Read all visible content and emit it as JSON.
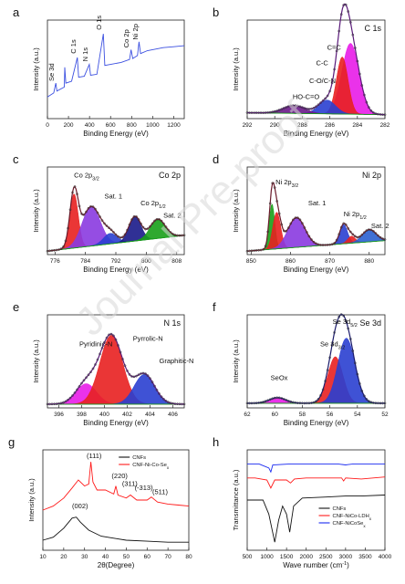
{
  "watermark": "Journal Pre-proof",
  "chart_data": [
    {
      "id": "a",
      "panel_letter": "a",
      "type": "line",
      "title": "",
      "xlabel": "Binding Energy (eV)",
      "ylabel": "Intensity (a.u.)",
      "xlim": [
        0,
        1300
      ],
      "ylim": [
        0,
        1
      ],
      "xticks": [
        0,
        200,
        400,
        600,
        800,
        1000,
        1200
      ],
      "series": [
        {
          "color": "#3b4fe0",
          "points": [
            [
              0,
              0.22
            ],
            [
              60,
              0.26
            ],
            [
              80,
              0.36
            ],
            [
              90,
              0.28
            ],
            [
              160,
              0.32
            ],
            [
              165,
              0.52
            ],
            [
              175,
              0.36
            ],
            [
              230,
              0.38
            ],
            [
              284,
              0.62
            ],
            [
              296,
              0.42
            ],
            [
              350,
              0.43
            ],
            [
              398,
              0.55
            ],
            [
              410,
              0.44
            ],
            [
              470,
              0.45
            ],
            [
              531,
              0.86
            ],
            [
              545,
              0.54
            ],
            [
              600,
              0.55
            ],
            [
              700,
              0.57
            ],
            [
              780,
              0.6
            ],
            [
              795,
              0.7
            ],
            [
              810,
              0.61
            ],
            [
              855,
              0.64
            ],
            [
              870,
              0.78
            ],
            [
              885,
              0.66
            ],
            [
              950,
              0.69
            ],
            [
              1000,
              0.7
            ],
            [
              1100,
              0.72
            ],
            [
              1200,
              0.73
            ],
            [
              1300,
              0.74
            ]
          ]
        }
      ],
      "annotations": [
        {
          "text": "Se 3d",
          "x": 60,
          "y": 0.38
        },
        {
          "text": "C 1s",
          "x": 270,
          "y": 0.66
        },
        {
          "text": "N 1s",
          "x": 380,
          "y": 0.58
        },
        {
          "text": "O 1s",
          "x": 510,
          "y": 0.9
        },
        {
          "text": "Co 2p",
          "x": 770,
          "y": 0.72
        },
        {
          "text": "Ni 2p",
          "x": 860,
          "y": 0.8
        }
      ]
    },
    {
      "id": "b",
      "panel_letter": "b",
      "type": "area",
      "title": "C 1s",
      "xlabel": "Binding Energy (eV)",
      "ylabel": "Intensity (a.u.)",
      "xlim": [
        292,
        282
      ],
      "ylim": [
        0,
        1
      ],
      "xticks": [
        282,
        284,
        286,
        288,
        290,
        292
      ],
      "background": [
        [
          292,
          0.06
        ],
        [
          282,
          0.04
        ]
      ],
      "peaks": [
        {
          "label": "C=C",
          "center": 284.5,
          "height": 0.72,
          "sigma": 0.62,
          "color": "#e81ce8"
        },
        {
          "label": "C-C",
          "center": 285.1,
          "height": 0.58,
          "sigma": 0.42,
          "color": "#e82020"
        },
        {
          "label": "C-O/C-N",
          "center": 286.2,
          "height": 0.14,
          "sigma": 0.62,
          "color": "#2a3fd0"
        },
        {
          "label": "HO-C=O",
          "center": 288.6,
          "height": 0.08,
          "sigma": 0.8,
          "color": "#6a1a8a"
        }
      ],
      "envelope_color": "#5a1a7a",
      "annotations": [
        {
          "text": "C=C",
          "x": 286.2,
          "y": 0.7
        },
        {
          "text": "C-C",
          "x": 287.0,
          "y": 0.54
        },
        {
          "text": "C-O/C-N",
          "x": 287.5,
          "y": 0.36
        },
        {
          "text": "HO-C=O",
          "x": 288.7,
          "y": 0.2
        }
      ]
    },
    {
      "id": "c",
      "panel_letter": "c",
      "type": "area",
      "title": "Co 2p",
      "xlabel": "Binding Energy (eV)",
      "ylabel": "Intensity (a.u.)",
      "xlim": [
        774,
        810
      ],
      "ylim": [
        0,
        1
      ],
      "xticks": [
        776,
        784,
        792,
        800,
        808
      ],
      "background": [
        [
          774,
          0.04
        ],
        [
          810,
          0.22
        ]
      ],
      "peaks": [
        {
          "label": "Co 2p3/2",
          "center": 781.0,
          "height": 0.62,
          "sigma": 1.1,
          "color": "#e82020"
        },
        {
          "label": "Sat. 1",
          "center": 785.5,
          "height": 0.45,
          "sigma": 2.4,
          "color": "#8a3ae0"
        },
        {
          "label": "",
          "center": 790.5,
          "height": 0.12,
          "sigma": 1.8,
          "color": "#2a3fd0"
        },
        {
          "label": "Co 2p1/2",
          "center": 797.0,
          "height": 0.28,
          "sigma": 1.6,
          "color": "#1a1a8a"
        },
        {
          "label": "Sat. 2",
          "center": 803.0,
          "height": 0.22,
          "sigma": 2.0,
          "color": "#18a018"
        }
      ],
      "envelope_color": "#6a1a2a",
      "annotations": [
        {
          "text": "Co 2p",
          "sub": "3/2",
          "x": 781,
          "y": 0.88
        },
        {
          "text": "Sat. 1",
          "x": 789,
          "y": 0.64
        },
        {
          "text": "Co 2p",
          "sub": "1/2",
          "x": 798.5,
          "y": 0.56
        },
        {
          "text": "Sat. 2",
          "x": 804.5,
          "y": 0.42
        }
      ]
    },
    {
      "id": "d",
      "panel_letter": "d",
      "type": "area",
      "title": "Ni 2p",
      "xlabel": "Binding Energy (eV)",
      "ylabel": "Intensity (a.u.)",
      "xlim": [
        849,
        884
      ],
      "ylim": [
        0,
        1
      ],
      "xticks": [
        850,
        860,
        870,
        880
      ],
      "background": [
        [
          849,
          0.04
        ],
        [
          884,
          0.16
        ]
      ],
      "peaks": [
        {
          "label": "",
          "center": 855.3,
          "height": 0.52,
          "sigma": 0.7,
          "color": "#18a018"
        },
        {
          "label": "Ni 2p3/2",
          "center": 856.5,
          "height": 0.42,
          "sigma": 1.0,
          "color": "#e82020"
        },
        {
          "label": "Sat. 1",
          "center": 861.5,
          "height": 0.34,
          "sigma": 2.2,
          "color": "#8a3ae0"
        },
        {
          "label": "Ni 2p1/2",
          "center": 873.5,
          "height": 0.22,
          "sigma": 1.0,
          "color": "#2a3fd0"
        },
        {
          "label": "",
          "center": 875.5,
          "height": 0.08,
          "sigma": 1.0,
          "color": "#e82020"
        },
        {
          "label": "Sat. 2",
          "center": 880.0,
          "height": 0.14,
          "sigma": 1.8,
          "color": "#2a5fd0"
        }
      ],
      "envelope_color": "#6a1a2a",
      "annotations": [
        {
          "text": "Ni 2p",
          "sub": "3/2",
          "x": 856.2,
          "y": 0.8
        },
        {
          "text": "Sat. 1",
          "x": 864.5,
          "y": 0.56
        },
        {
          "text": "Ni 2p",
          "sub": "1/2",
          "x": 873.5,
          "y": 0.44
        },
        {
          "text": "Sat. 2",
          "x": 880.5,
          "y": 0.3
        }
      ]
    },
    {
      "id": "e",
      "panel_letter": "e",
      "type": "area",
      "title": "N 1s",
      "xlabel": "Binding Energy (eV)",
      "ylabel": "Intensity (a.u.)",
      "xlim": [
        395,
        407
      ],
      "ylim": [
        0,
        1
      ],
      "xticks": [
        396,
        398,
        400,
        402,
        404,
        406
      ],
      "background": [
        [
          395,
          0.04
        ],
        [
          407,
          0.04
        ]
      ],
      "peaks": [
        {
          "label": "Pyridinic-N",
          "center": 398.4,
          "height": 0.22,
          "sigma": 0.9,
          "color": "#e81ce8"
        },
        {
          "label": "Pyrrolic-N",
          "center": 400.6,
          "height": 0.74,
          "sigma": 1.0,
          "color": "#e82020"
        },
        {
          "label": "Graphitic-N",
          "center": 403.5,
          "height": 0.32,
          "sigma": 0.9,
          "color": "#2a3fd0"
        }
      ],
      "envelope_color": "#5a1a7a",
      "annotations": [
        {
          "text": "Pyridinic-N",
          "x": 397.8,
          "y": 0.66
        },
        {
          "text": "Pyrrolic-N",
          "x": 402.5,
          "y": 0.72
        },
        {
          "text": "Graphitic-N",
          "x": 404.8,
          "y": 0.48
        }
      ]
    },
    {
      "id": "f",
      "panel_letter": "f",
      "type": "area",
      "title": "Se 3d",
      "xlabel": "Binding Energy (eV)",
      "ylabel": "Intensity (a.u.)",
      "xlim": [
        62,
        52
      ],
      "ylim": [
        0,
        1
      ],
      "xticks": [
        62,
        60,
        58,
        56,
        54,
        52
      ],
      "background": [
        [
          62,
          0.05
        ],
        [
          52,
          0.05
        ]
      ],
      "peaks": [
        {
          "label": "SeOx",
          "center": 59.8,
          "height": 0.06,
          "sigma": 0.6,
          "color": "#e81ce8"
        },
        {
          "label": "Se 3d3/2",
          "center": 55.6,
          "height": 0.5,
          "sigma": 0.55,
          "color": "#e82020"
        },
        {
          "label": "Se 3d5/2",
          "center": 54.8,
          "height": 0.7,
          "sigma": 0.62,
          "color": "#2a3fd0"
        }
      ],
      "envelope_color": "#1a1a6a",
      "annotations": [
        {
          "text": "Se 3d",
          "sub": "5/2",
          "x": 55.8,
          "y": 0.9
        },
        {
          "text": "Se 3d",
          "sub": "3/2",
          "x": 56.7,
          "y": 0.66
        },
        {
          "text": "SeOx",
          "x": 60.3,
          "y": 0.3
        }
      ]
    },
    {
      "id": "g",
      "panel_letter": "g",
      "type": "line",
      "title": "",
      "xlabel": "2θ(Degree)",
      "ylabel": "Intensity (a.u.)",
      "xlim": [
        10,
        80
      ],
      "ylim": [
        0,
        1
      ],
      "xticks": [
        10,
        20,
        30,
        40,
        50,
        60,
        70,
        80
      ],
      "legend": [
        "CNFs",
        "CNF-Ni-Co-Se"
      ],
      "legend_sub": "x",
      "series": [
        {
          "name": "CNFs",
          "color": "#111111",
          "points": [
            [
              10,
              0.1
            ],
            [
              15,
              0.13
            ],
            [
              20,
              0.22
            ],
            [
              24,
              0.32
            ],
            [
              26,
              0.33
            ],
            [
              28,
              0.28
            ],
            [
              32,
              0.2
            ],
            [
              38,
              0.14
            ],
            [
              44,
              0.12
            ],
            [
              50,
              0.1
            ],
            [
              60,
              0.09
            ],
            [
              70,
              0.08
            ],
            [
              80,
              0.08
            ]
          ]
        },
        {
          "name": "CNF-Ni-Co-Se",
          "color": "#ff1a1a",
          "points": [
            [
              10,
              0.4
            ],
            [
              15,
              0.44
            ],
            [
              20,
              0.52
            ],
            [
              24,
              0.62
            ],
            [
              27,
              0.7
            ],
            [
              30,
              0.64
            ],
            [
              32,
              0.66
            ],
            [
              33,
              0.88
            ],
            [
              34,
              0.68
            ],
            [
              36,
              0.6
            ],
            [
              40,
              0.6
            ],
            [
              44,
              0.56
            ],
            [
              45,
              0.64
            ],
            [
              46,
              0.55
            ],
            [
              50,
              0.52
            ],
            [
              52,
              0.55
            ],
            [
              55,
              0.5
            ],
            [
              60,
              0.5
            ],
            [
              62,
              0.53
            ],
            [
              65,
              0.48
            ],
            [
              70,
              0.46
            ],
            [
              75,
              0.45
            ],
            [
              80,
              0.44
            ]
          ]
        }
      ],
      "annotations": [
        {
          "text": "(111)",
          "x": 31.0,
          "y": 0.92
        },
        {
          "text": "(220)",
          "x": 43.0,
          "y": 0.72
        },
        {
          "text": "(311)",
          "x": 48.0,
          "y": 0.64
        },
        {
          "text": "(-313)",
          "x": 54.0,
          "y": 0.6
        },
        {
          "text": "(511)",
          "x": 62.5,
          "y": 0.56
        },
        {
          "text": "(002)",
          "x": 24.0,
          "y": 0.42
        }
      ]
    },
    {
      "id": "h",
      "panel_letter": "h",
      "type": "line",
      "title": "",
      "xlabel": "Wave number (cm",
      "xlabel_sup": "-1",
      "xlabel_end": ")",
      "ylabel": "Transmittance (a.u.)",
      "xlim": [
        500,
        4000
      ],
      "ylim": [
        0,
        1
      ],
      "xticks": [
        500,
        1000,
        1500,
        2000,
        2500,
        3000,
        3500,
        4000
      ],
      "legend": [
        "CNFs",
        "CNF-NiCo-LDH",
        "CNF-NiCoSe"
      ],
      "legend_sub": "x",
      "series": [
        {
          "name": "CNFs",
          "color": "#111111",
          "points": [
            [
              500,
              0.5
            ],
            [
              900,
              0.5
            ],
            [
              1050,
              0.36
            ],
            [
              1200,
              0.08
            ],
            [
              1300,
              0.3
            ],
            [
              1400,
              0.44
            ],
            [
              1500,
              0.36
            ],
            [
              1580,
              0.18
            ],
            [
              1680,
              0.44
            ],
            [
              1900,
              0.52
            ],
            [
              2500,
              0.53
            ],
            [
              3000,
              0.54
            ],
            [
              3400,
              0.54
            ],
            [
              4000,
              0.55
            ]
          ]
        },
        {
          "name": "CNF-NiCo-LDH",
          "color": "#ff1a1a",
          "points": [
            [
              500,
              0.72
            ],
            [
              700,
              0.72
            ],
            [
              1000,
              0.7
            ],
            [
              1100,
              0.62
            ],
            [
              1200,
              0.7
            ],
            [
              1500,
              0.7
            ],
            [
              1600,
              0.67
            ],
            [
              1700,
              0.71
            ],
            [
              2000,
              0.72
            ],
            [
              2900,
              0.72
            ],
            [
              2950,
              0.69
            ],
            [
              3000,
              0.72
            ],
            [
              3400,
              0.71
            ],
            [
              4000,
              0.73
            ]
          ]
        },
        {
          "name": "CNF-NiCoSe",
          "color": "#1a2af0",
          "points": [
            [
              500,
              0.86
            ],
            [
              800,
              0.86
            ],
            [
              1050,
              0.82
            ],
            [
              1100,
              0.78
            ],
            [
              1150,
              0.85
            ],
            [
              1600,
              0.86
            ],
            [
              2000,
              0.86
            ],
            [
              2800,
              0.86
            ],
            [
              3000,
              0.85
            ],
            [
              3200,
              0.86
            ],
            [
              4000,
              0.86
            ]
          ]
        }
      ]
    }
  ]
}
